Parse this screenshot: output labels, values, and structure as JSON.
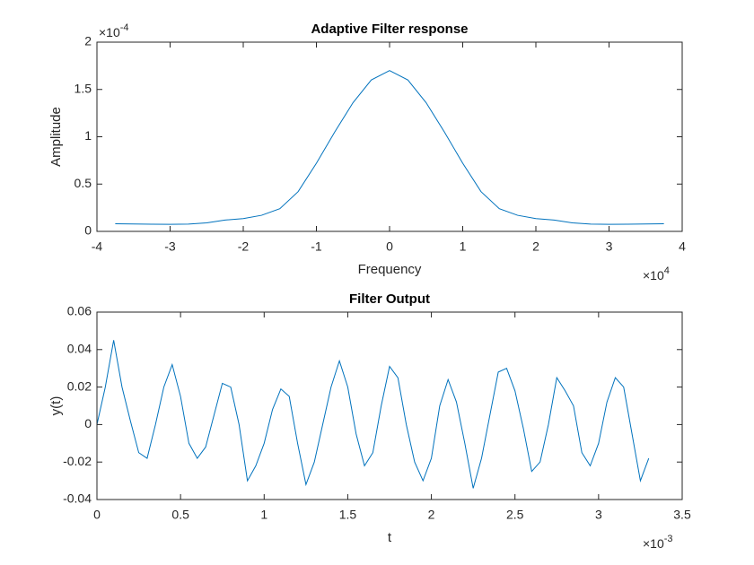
{
  "chart_data": [
    {
      "type": "line",
      "title": "Adaptive Filter response",
      "xlabel": "Frequency",
      "ylabel": "Amplitude",
      "color": "#0072bd",
      "x_scale_label": {
        "text": "×10",
        "exponent": "4"
      },
      "y_scale_label": {
        "text": "×10",
        "exponent": "-4"
      },
      "xlim": [
        -4,
        4
      ],
      "ylim": [
        0,
        2
      ],
      "xticks": [
        -4,
        -3,
        -2,
        -1,
        0,
        1,
        2,
        3,
        4
      ],
      "yticks": [
        0,
        0.5,
        1,
        1.5,
        2
      ],
      "x": [
        -3.75,
        -3.5,
        -3.25,
        -3,
        -2.75,
        -2.5,
        -2.25,
        -2,
        -1.75,
        -1.5,
        -1.25,
        -1,
        -0.75,
        -0.5,
        -0.25,
        0,
        0.25,
        0.5,
        0.75,
        1,
        1.25,
        1.5,
        1.75,
        2,
        2.25,
        2.5,
        2.75,
        3,
        3.25,
        3.5,
        3.75
      ],
      "values": [
        0.08,
        0.078,
        0.076,
        0.075,
        0.077,
        0.09,
        0.12,
        0.135,
        0.17,
        0.24,
        0.42,
        0.72,
        1.05,
        1.36,
        1.6,
        1.7,
        1.6,
        1.36,
        1.05,
        0.72,
        0.42,
        0.24,
        0.17,
        0.135,
        0.12,
        0.09,
        0.077,
        0.075,
        0.076,
        0.078,
        0.08
      ]
    },
    {
      "type": "line",
      "title": "Filter Output",
      "xlabel": "t",
      "ylabel": "y(t)",
      "color": "#0072bd",
      "x_scale_label": {
        "text": "×10",
        "exponent": "-3"
      },
      "xlim": [
        0,
        3.5
      ],
      "ylim": [
        -0.04,
        0.06
      ],
      "xticks": [
        0,
        0.5,
        1,
        1.5,
        2,
        2.5,
        3,
        3.5
      ],
      "yticks": [
        -0.04,
        -0.02,
        0,
        0.02,
        0.04,
        0.06
      ],
      "x": [
        0,
        0.05,
        0.1,
        0.15,
        0.2,
        0.25,
        0.3,
        0.35,
        0.4,
        0.45,
        0.5,
        0.55,
        0.6,
        0.65,
        0.7,
        0.75,
        0.8,
        0.85,
        0.9,
        0.95,
        1,
        1.05,
        1.1,
        1.15,
        1.2,
        1.25,
        1.3,
        1.35,
        1.4,
        1.45,
        1.5,
        1.55,
        1.6,
        1.65,
        1.7,
        1.75,
        1.8,
        1.85,
        1.9,
        1.95,
        2,
        2.05,
        2.1,
        2.15,
        2.2,
        2.25,
        2.3,
        2.35,
        2.4,
        2.45,
        2.5,
        2.55,
        2.6,
        2.65,
        2.7,
        2.75,
        2.8,
        2.85,
        2.9,
        2.95,
        3,
        3.05,
        3.1,
        3.15,
        3.2,
        3.25,
        3.3
      ],
      "values": [
        0,
        0.02,
        0.045,
        0.02,
        0.002,
        -0.015,
        -0.018,
        0,
        0.02,
        0.032,
        0.015,
        -0.01,
        -0.018,
        -0.012,
        0.005,
        0.022,
        0.02,
        0,
        -0.03,
        -0.022,
        -0.01,
        0.008,
        0.019,
        0.015,
        -0.01,
        -0.032,
        -0.02,
        0,
        0.02,
        0.034,
        0.02,
        -0.005,
        -0.022,
        -0.015,
        0.01,
        0.031,
        0.025,
        0,
        -0.02,
        -0.03,
        -0.018,
        0.01,
        0.024,
        0.012,
        -0.01,
        -0.034,
        -0.018,
        0.005,
        0.028,
        0.03,
        0.018,
        -0.002,
        -0.025,
        -0.02,
        0,
        0.025,
        0.018,
        0.01,
        -0.015,
        -0.022,
        -0.01,
        0.012,
        0.025,
        0.02,
        -0.005,
        -0.03,
        -0.018
      ]
    }
  ]
}
